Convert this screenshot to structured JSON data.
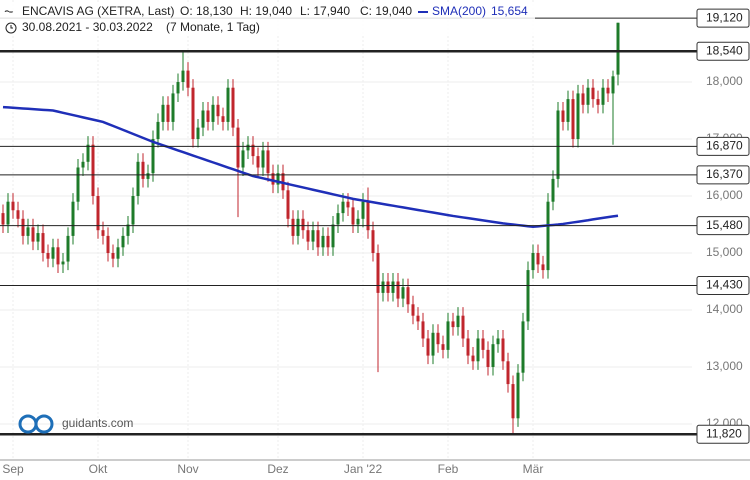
{
  "chart_data": {
    "type": "candlestick",
    "header": {
      "title": "ENCAVIS AG (XETRA, Last)",
      "open": "O: 18,130",
      "high": "H: 19,040",
      "low": "L: 17,940",
      "close": "C: 19,040",
      "sma_name": "SMA(200)",
      "sma_value": "15,654",
      "range": "30.08.2021 - 30.03.2022",
      "span": "(7 Monate, 1 Tag)"
    },
    "watermark": "guidants.com",
    "up_color": "#1e7b2a",
    "down_color": "#c0262d",
    "open": [
      15700,
      15500,
      15900,
      15750,
      15600,
      15300,
      15450,
      15200,
      15350,
      15000,
      14900,
      15100,
      14800,
      14850,
      15300,
      15900,
      16500,
      16600,
      16900,
      16000,
      15400,
      15300,
      15000,
      14900,
      15100,
      15300,
      15500,
      16000,
      16600,
      16300,
      16400,
      17000,
      17300,
      17600,
      17300,
      17800,
      18000,
      18200,
      17900,
      17000,
      17200,
      17500,
      17300,
      17600,
      17400,
      17300,
      17900,
      17200,
      16500,
      16800,
      16900,
      16700,
      16500,
      16800,
      16400,
      16200,
      16400,
      16100,
      15600,
      15300,
      15600,
      15400,
      15200,
      15400,
      15100,
      15300,
      15100,
      15500,
      15700,
      15900,
      15800,
      15500,
      15600,
      15900,
      15400,
      15000,
      14300,
      14500,
      14300,
      14500,
      14200,
      14400,
      14100,
      13900,
      13800,
      13500,
      13200,
      13600,
      13400,
      13300,
      13800,
      13700,
      13900,
      13500,
      13200,
      13100,
      13500,
      13300,
      13000,
      13400,
      13500,
      13100,
      12700,
      12100,
      12900,
      13800,
      14700,
      15000,
      14800,
      14700,
      15900,
      16300,
      17500,
      17300,
      17700,
      17000,
      17800,
      17600,
      17900,
      17700,
      17600,
      17900,
      17800,
      18130
    ],
    "high": [
      15850,
      16050,
      16050,
      15900,
      15750,
      15600,
      15600,
      15500,
      15500,
      15150,
      15250,
      15250,
      15000,
      15450,
      16050,
      16650,
      16750,
      17050,
      17050,
      16150,
      15550,
      15450,
      15150,
      15250,
      15450,
      15650,
      16150,
      16750,
      16750,
      16550,
      17150,
      17450,
      17750,
      17750,
      17950,
      18150,
      18540,
      18350,
      18050,
      17350,
      17650,
      17650,
      17750,
      17750,
      17550,
      18050,
      18050,
      17350,
      16950,
      17050,
      17050,
      16850,
      16950,
      16950,
      16550,
      16550,
      16550,
      16250,
      15750,
      15750,
      15750,
      15550,
      15550,
      15550,
      15450,
      15450,
      15650,
      15850,
      16050,
      16050,
      15950,
      15750,
      16050,
      16150,
      15550,
      15150,
      14650,
      14650,
      14650,
      14650,
      14550,
      14550,
      14250,
      14050,
      13950,
      13650,
      13750,
      13750,
      13550,
      13950,
      13950,
      14050,
      14050,
      13650,
      13350,
      13650,
      13650,
      13450,
      13550,
      13650,
      13650,
      13250,
      12850,
      13050,
      13950,
      14850,
      15150,
      15150,
      14950,
      16050,
      16450,
      17650,
      17650,
      17850,
      17850,
      17950,
      17950,
      18050,
      18050,
      17850,
      18050,
      18050,
      18200,
      19040
    ],
    "low": [
      15350,
      15350,
      15600,
      15450,
      15150,
      15150,
      15050,
      15050,
      14850,
      14750,
      14750,
      14650,
      14650,
      14700,
      15150,
      15750,
      16350,
      16450,
      15850,
      15250,
      15150,
      14850,
      14750,
      14750,
      14950,
      15150,
      15350,
      15850,
      16150,
      16150,
      16250,
      16850,
      17150,
      17150,
      17150,
      17650,
      17850,
      17750,
      16850,
      16850,
      17050,
      17150,
      17150,
      17250,
      17150,
      17150,
      17050,
      15630,
      16350,
      16650,
      16550,
      16350,
      16350,
      16250,
      16050,
      16050,
      15950,
      15450,
      15150,
      15150,
      15250,
      15050,
      15050,
      14950,
      14950,
      14950,
      14950,
      15350,
      15550,
      15650,
      15350,
      15350,
      15450,
      15250,
      14850,
      12910,
      14150,
      14150,
      14150,
      14050,
      14050,
      13950,
      13750,
      13650,
      13350,
      13050,
      13050,
      13250,
      13150,
      13150,
      13550,
      13550,
      13350,
      13050,
      12950,
      12950,
      13150,
      12850,
      12850,
      13250,
      12950,
      12550,
      11820,
      11950,
      12750,
      13650,
      14550,
      14650,
      14550,
      14550,
      15750,
      16150,
      17150,
      17150,
      16850,
      16850,
      17450,
      17450,
      17550,
      17450,
      17450,
      17650,
      16900,
      17940
    ],
    "close": [
      15500,
      15900,
      15750,
      15600,
      15300,
      15450,
      15200,
      15350,
      15000,
      14900,
      15100,
      14800,
      14850,
      15300,
      15900,
      16500,
      16600,
      16900,
      16000,
      15400,
      15300,
      15000,
      14900,
      15100,
      15300,
      15500,
      16000,
      16600,
      16300,
      16400,
      17000,
      17300,
      17600,
      17300,
      17800,
      18000,
      18200,
      17900,
      17000,
      17200,
      17500,
      17300,
      17600,
      17400,
      17300,
      17900,
      17200,
      16500,
      16800,
      16900,
      16700,
      16500,
      16800,
      16400,
      16200,
      16400,
      16100,
      15600,
      15300,
      15600,
      15400,
      15200,
      15400,
      15100,
      15300,
      15100,
      15500,
      15700,
      15900,
      15800,
      15500,
      15600,
      15900,
      15400,
      15000,
      14300,
      14500,
      14300,
      14500,
      14200,
      14400,
      14100,
      13900,
      13800,
      13500,
      13200,
      13600,
      13400,
      13300,
      13800,
      13700,
      13900,
      13500,
      13200,
      13100,
      13500,
      13300,
      13000,
      13400,
      13500,
      13100,
      12700,
      12100,
      12900,
      13800,
      14700,
      15000,
      14800,
      14700,
      15900,
      16300,
      17500,
      17300,
      17700,
      17000,
      17800,
      17600,
      17900,
      17700,
      17600,
      17900,
      17800,
      18100,
      19040
    ],
    "sma": {
      "color": "#1f2fb8",
      "values": [
        17560,
        17554,
        17548,
        17542,
        17536,
        17530,
        17524,
        17518,
        17512,
        17506,
        17500,
        17480,
        17460,
        17440,
        17420,
        17400,
        17380,
        17360,
        17340,
        17320,
        17300,
        17265,
        17230,
        17195,
        17160,
        17125,
        17090,
        17055,
        17020,
        16985,
        16950,
        16920,
        16890,
        16860,
        16830,
        16800,
        16770,
        16740,
        16710,
        16680,
        16650,
        16620,
        16590,
        16560,
        16530,
        16500,
        16470,
        16440,
        16410,
        16380,
        16350,
        16330,
        16310,
        16290,
        16270,
        16250,
        16230,
        16210,
        16190,
        16170,
        16150,
        16130,
        16110,
        16090,
        16070,
        16050,
        16030,
        16010,
        15990,
        15970,
        15950,
        15935,
        15920,
        15905,
        15890,
        15875,
        15860,
        15845,
        15830,
        15815,
        15800,
        15785,
        15770,
        15755,
        15740,
        15725,
        15710,
        15695,
        15680,
        15665,
        15650,
        15637,
        15624,
        15611,
        15598,
        15585,
        15572,
        15559,
        15546,
        15533,
        15520,
        15510,
        15500,
        15490,
        15480,
        15470,
        15460,
        15468,
        15476,
        15484,
        15492,
        15500,
        15510,
        15523,
        15536,
        15549,
        15562,
        15575,
        15590,
        15603,
        15616,
        15629,
        15642,
        15654
      ]
    },
    "ylim": [
      11368,
      19439
    ],
    "yticks": [
      {
        "value": 12000,
        "label": "12,000"
      },
      {
        "value": 13000,
        "label": "13,000"
      },
      {
        "value": 14000,
        "label": "14,000"
      },
      {
        "value": 15000,
        "label": "15,000"
      },
      {
        "value": 16000,
        "label": "16,000"
      },
      {
        "value": 17000,
        "label": "17,000"
      },
      {
        "value": 18000,
        "label": "18,000"
      }
    ],
    "xticks": [
      {
        "value": 2,
        "label": "Sep"
      },
      {
        "value": 19,
        "label": "Okt"
      },
      {
        "value": 37,
        "label": "Nov"
      },
      {
        "value": 55,
        "label": "Dez"
      },
      {
        "value": 72,
        "label": "Jan '22"
      },
      {
        "value": 89,
        "label": "Feb"
      },
      {
        "value": 106,
        "label": "Mär"
      }
    ],
    "levels": [
      {
        "value": 19120,
        "label": "19,120",
        "width": 1
      },
      {
        "value": 18540,
        "label": "18,540",
        "width": 2.5
      },
      {
        "value": 16870,
        "label": "16,870",
        "width": 1
      },
      {
        "value": 16370,
        "label": "16,370",
        "width": 1
      },
      {
        "value": 15480,
        "label": "15,480",
        "width": 1
      },
      {
        "value": 14430,
        "label": "14,430",
        "width": 1
      },
      {
        "value": 11820,
        "label": "11,820",
        "width": 2.5
      }
    ]
  }
}
